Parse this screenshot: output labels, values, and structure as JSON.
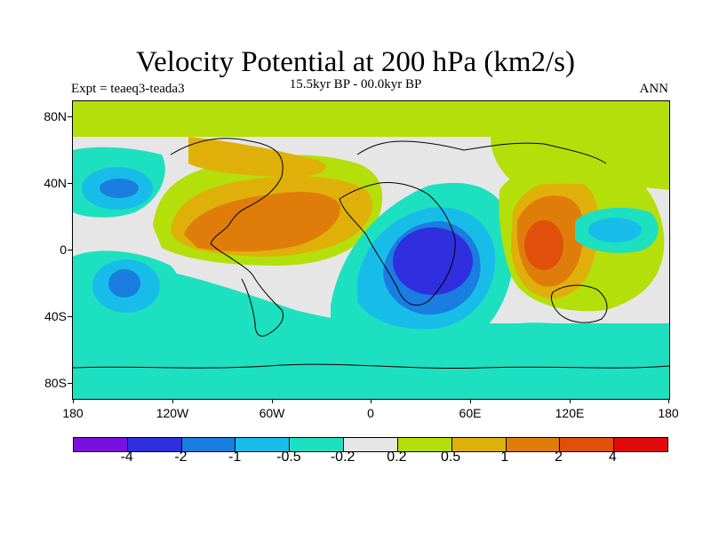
{
  "title": "Velocity Potential at 200 hPa (km2/s)",
  "subtitle": "15.5kyr BP - 00.0kyr BP",
  "left_label": "Expt = teaeq3-teada3",
  "right_label": "ANN",
  "lat_labels": [
    "80N",
    "40N",
    "0",
    "40S",
    "80S"
  ],
  "lon_labels": [
    "180",
    "120W",
    "60W",
    "0",
    "60E",
    "120E",
    "180"
  ],
  "colorbar": {
    "colors": [
      "#7a0fe0",
      "#2f2fe0",
      "#1a7de0",
      "#17bde8",
      "#1de0c0",
      "#e6e6e6",
      "#b4df0a",
      "#e0b00a",
      "#e07d0a",
      "#e0500a",
      "#e00a0a"
    ],
    "labels": [
      "-4",
      "-2",
      "-1",
      "-0.5",
      "-0.2",
      "0.2",
      "0.5",
      "1",
      "2",
      "4"
    ]
  },
  "colors": {
    "neutral": "#e6e6e6",
    "pos_weak": "#b4df0a",
    "pos_mid": "#e0b00a",
    "pos_strong": "#e07d0a",
    "pos_stronger": "#e0500a",
    "neg_weak": "#1de0c0",
    "neg_mid": "#17bde8",
    "neg_strong": "#1a7de0",
    "neg_stronger": "#2f2fe0"
  }
}
